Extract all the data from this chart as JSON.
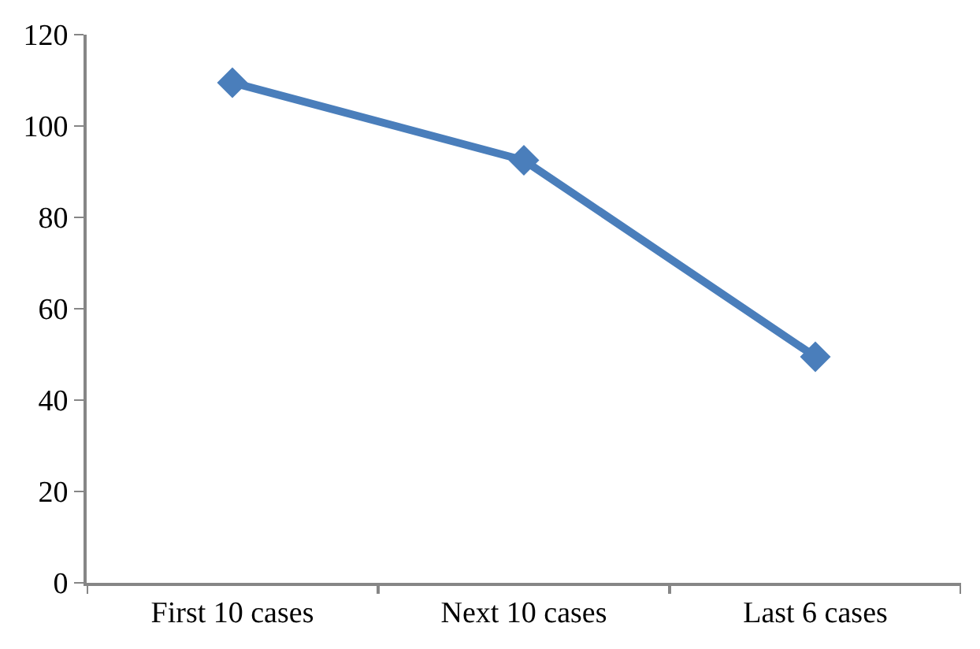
{
  "chart_data": {
    "type": "line",
    "categories": [
      "First 10 cases",
      "Next 10 cases",
      "Last 6 cases"
    ],
    "series": [
      {
        "color": "#4a7ebb",
        "values": [
          109.5,
          92.5,
          49.5
        ]
      }
    ],
    "ylim": [
      0,
      120
    ],
    "yticks": [
      0,
      20,
      40,
      60,
      80,
      100,
      120
    ],
    "marker": "diamond",
    "line_style": "solid"
  }
}
